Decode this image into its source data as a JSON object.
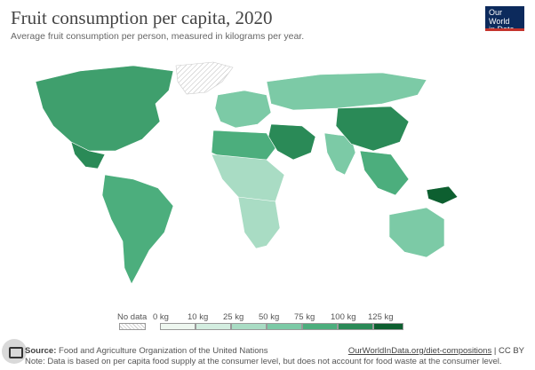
{
  "title": "Fruit consumption per capita, 2020",
  "subtitle": "Average fruit consumption per person, measured in kilograms per year.",
  "logo": {
    "line1": "Our World",
    "line2": "in Data"
  },
  "legend": {
    "no_data_label": "No data",
    "bins": [
      {
        "label": "0 kg",
        "color": "#eef7f0"
      },
      {
        "label": "10 kg",
        "color": "#d3ede0"
      },
      {
        "label": "25 kg",
        "color": "#a9dcc4"
      },
      {
        "label": "50 kg",
        "color": "#7ccaa6"
      },
      {
        "label": "75 kg",
        "color": "#4cae7d"
      },
      {
        "label": "100 kg",
        "color": "#2a8a57"
      },
      {
        "label": "125 kg",
        "color": "#0d5f30"
      }
    ]
  },
  "footer": {
    "source_prefix": "Source:",
    "source_text": " Food and Agriculture Organization of the United Nations",
    "note": "Note: Data is based on per capita food supply at the consumer level, but does not account for food waste at the consumer level.",
    "link": "OurWorldInData.org/diet-compositions",
    "license": " | CC BY"
  },
  "regions": [
    {
      "name": "greenland",
      "fill": "#ffffff"
    },
    {
      "name": "north-america",
      "fill": "#3f9f6d"
    },
    {
      "name": "mexico",
      "fill": "#2a8a57"
    },
    {
      "name": "south-america",
      "fill": "#4cae7d"
    },
    {
      "name": "europe",
      "fill": "#7ccaa6"
    },
    {
      "name": "russia",
      "fill": "#7ccaa6"
    },
    {
      "name": "middle-east",
      "fill": "#2a8a57"
    },
    {
      "name": "africa-north",
      "fill": "#4cae7d"
    },
    {
      "name": "africa-central",
      "fill": "#a9dcc4"
    },
    {
      "name": "africa-south",
      "fill": "#a9dcc4"
    },
    {
      "name": "india",
      "fill": "#7ccaa6"
    },
    {
      "name": "china",
      "fill": "#2a8a57"
    },
    {
      "name": "southeast-asia",
      "fill": "#4cae7d"
    },
    {
      "name": "australia",
      "fill": "#7ccaa6"
    },
    {
      "name": "papua",
      "fill": "#0d5f30"
    }
  ]
}
